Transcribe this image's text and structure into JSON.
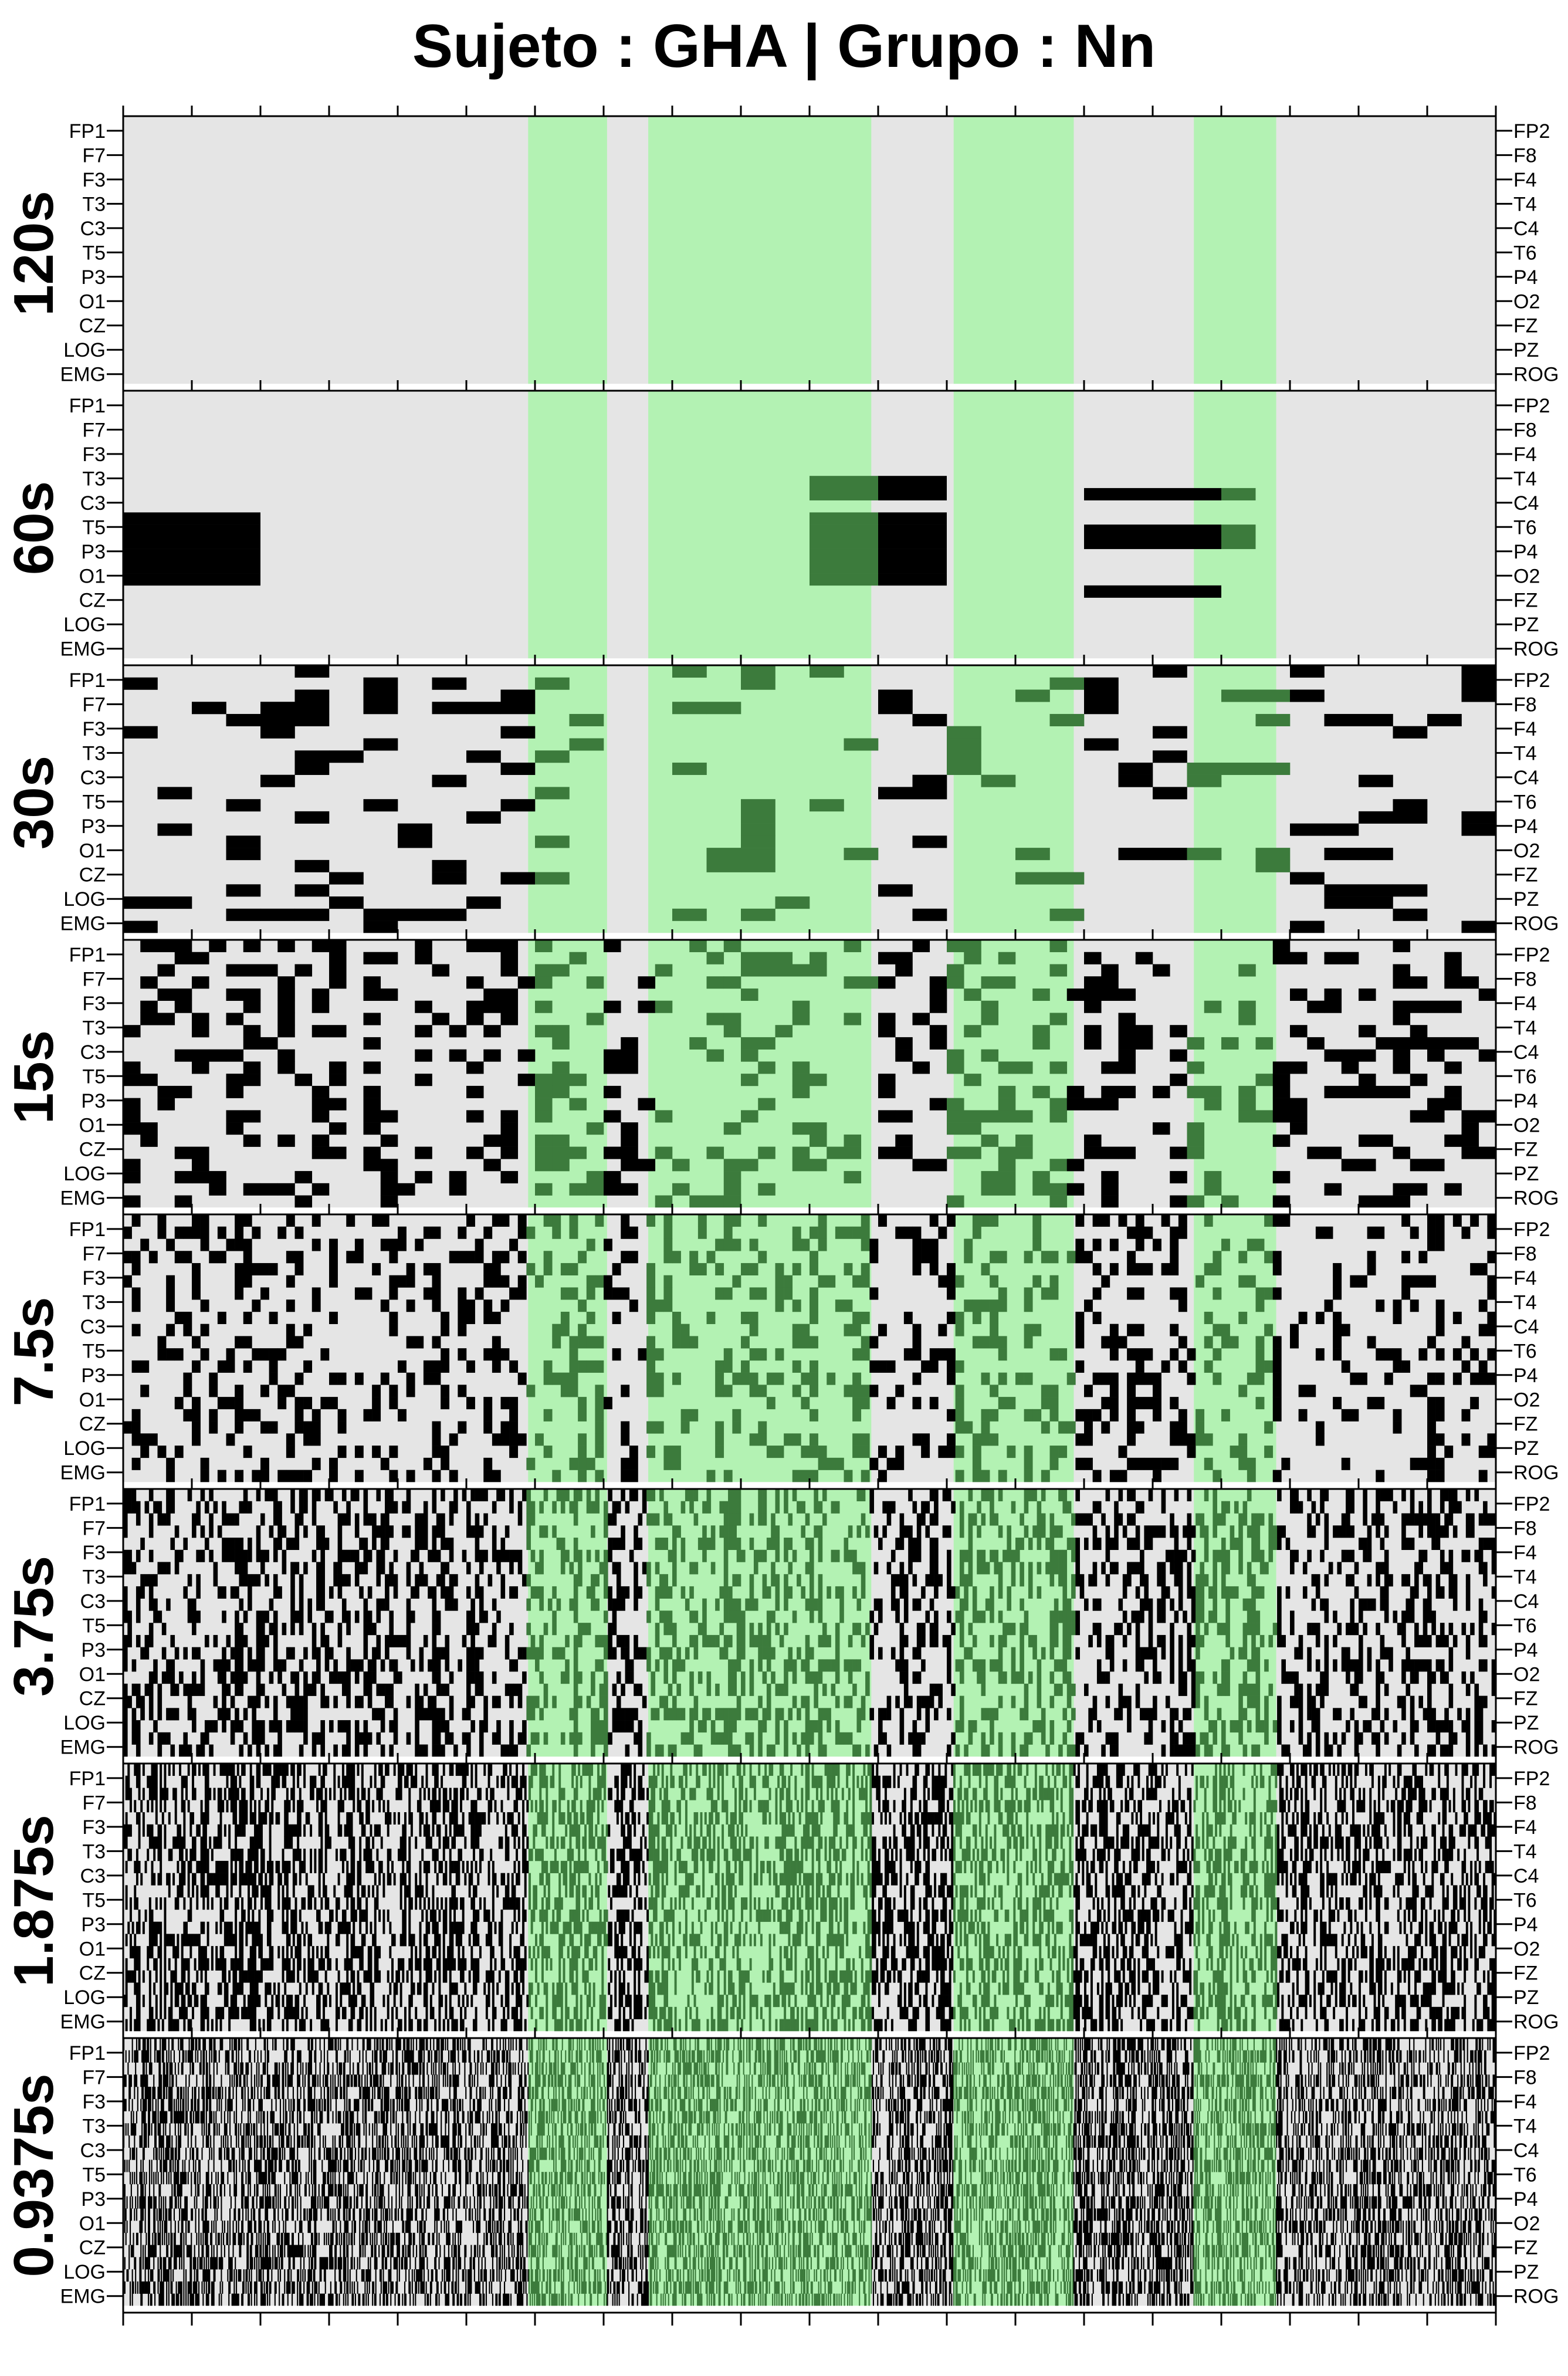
{
  "title": "Sujeto : GHA  | Grupo :  Nn",
  "colors": {
    "background": "#e5e5e5",
    "highlight": "#b3f2b3",
    "mark": "#000000",
    "mark_in_highlight": "#3c7b3c",
    "gap": "#ffffff"
  },
  "chart_data": {
    "type": "heatmap",
    "title": "Sujeto : GHA  | Grupo :  Nn",
    "x_range": [
      0,
      20
    ],
    "x_major_ticks": [
      0,
      1,
      2,
      3,
      4,
      5,
      6,
      7,
      8,
      9,
      10,
      11,
      12,
      13,
      14,
      15,
      16,
      17,
      18,
      19,
      20
    ],
    "highlight_intervals": [
      [
        5.9,
        7.05
      ],
      [
        7.65,
        10.9
      ],
      [
        12.1,
        13.85
      ],
      [
        15.6,
        16.8
      ]
    ],
    "channels_left": [
      "FP1",
      "F7",
      "F3",
      "T3",
      "C3",
      "T5",
      "P3",
      "O1",
      "CZ",
      "LOG",
      "EMG"
    ],
    "channels_right": [
      "FP2",
      "F8",
      "F4",
      "T4",
      "C4",
      "T6",
      "P4",
      "O2",
      "FZ",
      "PZ",
      "ROG"
    ],
    "rows_per_panel": 22,
    "panels": [
      {
        "label": "120s",
        "epoch": 2,
        "seed": 11,
        "density": 0.0,
        "blocks": []
      },
      {
        "label": "60s",
        "epoch": 1,
        "seed": 23,
        "density": 0.0,
        "blocks": [
          {
            "x": [
              0,
              2
            ],
            "rows": [
              10,
              11,
              12,
              13,
              14,
              15
            ]
          },
          {
            "x": [
              10,
              11
            ],
            "rows": [
              7,
              8
            ]
          },
          {
            "x": [
              11,
              12
            ],
            "rows": [
              7,
              8,
              10,
              11,
              12,
              13,
              14,
              15
            ]
          },
          {
            "x": [
              10,
              11
            ],
            "rows": [
              10,
              11,
              12,
              13,
              14,
              15
            ]
          },
          {
            "x": [
              14,
              16
            ],
            "rows": [
              8,
              11,
              12,
              16
            ]
          },
          {
            "x": [
              16,
              16.5
            ],
            "rows": [
              8,
              11,
              12
            ]
          }
        ]
      },
      {
        "label": "30s",
        "epoch": 0.5,
        "seed": 37,
        "density": 0.18,
        "blocks": []
      },
      {
        "label": "15s",
        "epoch": 0.25,
        "seed": 41,
        "density": 0.3,
        "blocks": []
      },
      {
        "label": "7.5s",
        "epoch": 0.125,
        "seed": 53,
        "density": 0.3,
        "blocks": []
      },
      {
        "label": "3.75s",
        "epoch": 0.0625,
        "seed": 67,
        "density": 0.4,
        "blocks": []
      },
      {
        "label": "1.875s",
        "epoch": 0.03125,
        "seed": 79,
        "density": 0.45,
        "blocks": []
      },
      {
        "label": "0.9375s",
        "epoch": 0.015625,
        "seed": 97,
        "density": 0.45,
        "blocks": []
      }
    ]
  }
}
